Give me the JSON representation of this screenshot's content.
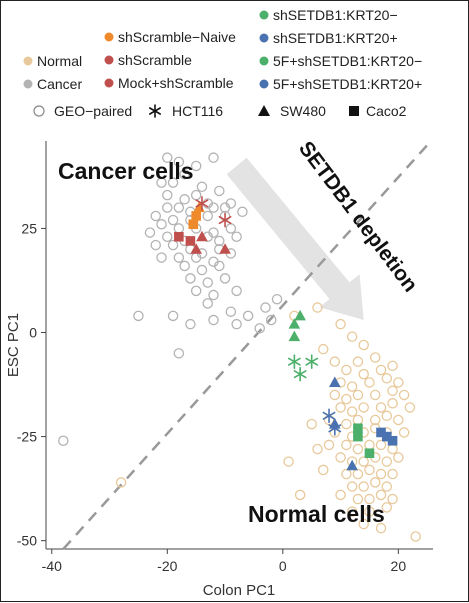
{
  "chart_data": {
    "type": "scatter",
    "xlabel": "Colon PC1",
    "ylabel": "ESC PC1",
    "xlim": [
      -41,
      26
    ],
    "ylim": [
      -52,
      46
    ],
    "xticks": [
      -40,
      -20,
      0,
      20
    ],
    "yticks": [
      25,
      0,
      -25,
      -50
    ],
    "grid": false,
    "legend_position": "top",
    "colors": {
      "normal": "#e8c99b",
      "cancer": "#b3b3b3",
      "scramble_naive": "#ee8a2b",
      "scramble": "#c0504d",
      "mock_scramble": "#c0504d",
      "setdb1_krt20_minus": "#4caf6a",
      "setdb1_krt20_plus": "#4a72b0",
      "f5_krt20_minus": "#4caf6a",
      "f5_krt20_plus": "#4a72b0",
      "shape_black": "#111111",
      "legend_open": "#888888",
      "diagonal": "#999999",
      "arrow": "#e3e3e3"
    },
    "legend": {
      "colors": [
        {
          "label": "Normal",
          "color": "#e8c99b"
        },
        {
          "label": "Cancer",
          "color": "#b3b3b3"
        },
        {
          "label": "shScramble−Naive",
          "color": "#ee8a2b"
        },
        {
          "label": "shScramble",
          "color": "#c0504d"
        },
        {
          "label": "Mock+shScramble",
          "color": "#c0504d"
        },
        {
          "label": "shSETDB1:KRT20−",
          "color": "#4caf6a"
        },
        {
          "label": "shSETDB1:KRT20+",
          "color": "#4a72b0"
        },
        {
          "label": "5F+shSETDB1:KRT20−",
          "color": "#4caf6a"
        },
        {
          "label": "5F+shSETDB1:KRT20+",
          "color": "#4a72b0"
        }
      ],
      "shapes": [
        {
          "label": "GEO−paired",
          "shape": "open-circle"
        },
        {
          "label": "HCT116",
          "shape": "asterisk"
        },
        {
          "label": "SW480",
          "shape": "triangle"
        },
        {
          "label": "Caco2",
          "shape": "square"
        }
      ]
    },
    "annotations": {
      "cancer_cells": "Cancer cells",
      "normal_cells": "Normal cells",
      "arrow_label": "SETDB1 depletion"
    },
    "diagonal": [
      [
        -38,
        -52
      ],
      [
        25,
        45
      ]
    ],
    "arrow": {
      "from": [
        -8,
        40
      ],
      "to": [
        14,
        3
      ]
    },
    "series": [
      {
        "name": "Cancer",
        "shape": "open-circle",
        "color": "#b3b3b3",
        "points": [
          [
            -20,
            42
          ],
          [
            -18,
            41
          ],
          [
            -15,
            40
          ],
          [
            -12,
            42
          ],
          [
            -17,
            38
          ],
          [
            -19,
            36
          ],
          [
            -21,
            36
          ],
          [
            -14,
            35
          ],
          [
            -11,
            34
          ],
          [
            -20,
            33
          ],
          [
            -17,
            32
          ],
          [
            -15,
            33
          ],
          [
            -13,
            31
          ],
          [
            -9,
            31
          ],
          [
            -20,
            30
          ],
          [
            -18,
            30
          ],
          [
            -16,
            29
          ],
          [
            -12,
            30
          ],
          [
            -10,
            30
          ],
          [
            -7,
            29
          ],
          [
            -22,
            28
          ],
          [
            -19,
            27
          ],
          [
            -16,
            27
          ],
          [
            -13,
            28
          ],
          [
            -10,
            28
          ],
          [
            -21,
            26
          ],
          [
            -18,
            25
          ],
          [
            -15,
            25
          ],
          [
            -12,
            24
          ],
          [
            -9,
            25
          ],
          [
            -23,
            24
          ],
          [
            -20,
            23
          ],
          [
            -17,
            22
          ],
          [
            -13,
            23
          ],
          [
            -11,
            22
          ],
          [
            -8,
            23
          ],
          [
            -22,
            21
          ],
          [
            -19,
            21
          ],
          [
            -16,
            20
          ],
          [
            -14,
            19
          ],
          [
            -11,
            20
          ],
          [
            -9,
            19
          ],
          [
            -21,
            18
          ],
          [
            -18,
            18
          ],
          [
            -15,
            18
          ],
          [
            -12,
            17
          ],
          [
            -17,
            16
          ],
          [
            -14,
            15
          ],
          [
            -11,
            16
          ],
          [
            -16,
            13
          ],
          [
            -13,
            12
          ],
          [
            -10,
            13
          ],
          [
            -15,
            10
          ],
          [
            -12,
            9
          ],
          [
            -8,
            10
          ],
          [
            -13,
            7
          ],
          [
            -9,
            5
          ],
          [
            -6,
            4
          ],
          [
            -3,
            6
          ],
          [
            -2,
            3
          ],
          [
            -1,
            8
          ],
          [
            -4,
            1
          ],
          [
            -8,
            2
          ],
          [
            -12,
            3
          ],
          [
            -16,
            2
          ],
          [
            -19,
            4
          ],
          [
            -25,
            4
          ],
          [
            -18,
            -5
          ],
          [
            -38,
            -26
          ]
        ]
      },
      {
        "name": "Normal",
        "shape": "open-circle",
        "color": "#e8c99b",
        "points": [
          [
            6,
            6
          ],
          [
            2,
            4
          ],
          [
            10,
            2
          ],
          [
            7,
            -4
          ],
          [
            12,
            -1
          ],
          [
            14,
            -3
          ],
          [
            9,
            -7
          ],
          [
            13,
            -7
          ],
          [
            16,
            -6
          ],
          [
            11,
            -9
          ],
          [
            14,
            -10
          ],
          [
            17,
            -9
          ],
          [
            19,
            -8
          ],
          [
            10,
            -12
          ],
          [
            12,
            -13
          ],
          [
            15,
            -12
          ],
          [
            18,
            -11
          ],
          [
            20,
            -12
          ],
          [
            9,
            -15
          ],
          [
            11,
            -16
          ],
          [
            13,
            -15
          ],
          [
            16,
            -15
          ],
          [
            19,
            -14
          ],
          [
            21,
            -15
          ],
          [
            10,
            -18
          ],
          [
            12,
            -19
          ],
          [
            14,
            -18
          ],
          [
            17,
            -18
          ],
          [
            19,
            -17
          ],
          [
            22,
            -18
          ],
          [
            8,
            -21
          ],
          [
            11,
            -22
          ],
          [
            13,
            -21
          ],
          [
            16,
            -21
          ],
          [
            18,
            -20
          ],
          [
            20,
            -21
          ],
          [
            9,
            -24
          ],
          [
            12,
            -25
          ],
          [
            14,
            -24
          ],
          [
            16,
            -23
          ],
          [
            18,
            -24
          ],
          [
            21,
            -24
          ],
          [
            8,
            -27
          ],
          [
            11,
            -27
          ],
          [
            13,
            -28
          ],
          [
            15,
            -27
          ],
          [
            17,
            -27
          ],
          [
            19,
            -28
          ],
          [
            10,
            -30
          ],
          [
            12,
            -31
          ],
          [
            14,
            -31
          ],
          [
            16,
            -30
          ],
          [
            18,
            -31
          ],
          [
            20,
            -30
          ],
          [
            7,
            -33
          ],
          [
            11,
            -34
          ],
          [
            13,
            -34
          ],
          [
            15,
            -33
          ],
          [
            17,
            -34
          ],
          [
            19,
            -34
          ],
          [
            12,
            -37
          ],
          [
            14,
            -37
          ],
          [
            16,
            -36
          ],
          [
            18,
            -37
          ],
          [
            10,
            -39
          ],
          [
            13,
            -40
          ],
          [
            15,
            -40
          ],
          [
            17,
            -39
          ],
          [
            19,
            -40
          ],
          [
            12,
            -43
          ],
          [
            15,
            -43
          ],
          [
            18,
            -42
          ],
          [
            14,
            -46
          ],
          [
            17,
            -47
          ],
          [
            1,
            -31
          ],
          [
            3,
            -39
          ],
          [
            23,
            -49
          ],
          [
            -28,
            -36
          ],
          [
            5,
            -22
          ],
          [
            6,
            -28
          ]
        ]
      },
      {
        "name": "shScramble−Naive",
        "shape": "square",
        "color": "#ee8a2b",
        "points": [
          [
            -15.5,
            26
          ],
          [
            -15,
            28
          ]
        ]
      },
      {
        "name": "shScramble−Naive",
        "shape": "triangle",
        "color": "#ee8a2b",
        "points": [
          [
            -14.5,
            30
          ]
        ]
      },
      {
        "name": "shScramble",
        "shape": "square",
        "color": "#c0504d",
        "points": [
          [
            -18,
            23
          ],
          [
            -16,
            22
          ]
        ]
      },
      {
        "name": "Mock+shScramble",
        "shape": "triangle",
        "color": "#c0504d",
        "points": [
          [
            -14,
            23
          ],
          [
            -15,
            20
          ],
          [
            -10,
            20
          ]
        ]
      },
      {
        "name": "shScramble",
        "shape": "asterisk",
        "color": "#c0504d",
        "points": [
          [
            -14,
            31
          ],
          [
            -10,
            27
          ]
        ]
      },
      {
        "name": "shSETDB1:KRT20−",
        "shape": "triangle",
        "color": "#4caf6a",
        "points": [
          [
            2,
            2
          ],
          [
            3,
            4
          ],
          [
            2,
            -1
          ]
        ]
      },
      {
        "name": "shSETDB1:KRT20−",
        "shape": "asterisk",
        "color": "#4caf6a",
        "points": [
          [
            2,
            -7
          ],
          [
            3,
            -10
          ],
          [
            5,
            -7
          ]
        ]
      },
      {
        "name": "5F+shSETDB1:KRT20−",
        "shape": "square",
        "color": "#4caf6a",
        "points": [
          [
            13,
            -23
          ],
          [
            13,
            -25
          ],
          [
            15,
            -29
          ]
        ]
      },
      {
        "name": "shSETDB1:KRT20+",
        "shape": "triangle",
        "color": "#4a72b0",
        "points": [
          [
            9,
            -12
          ],
          [
            9,
            -22
          ],
          [
            12,
            -32
          ]
        ]
      },
      {
        "name": "shSETDB1:KRT20+",
        "shape": "asterisk",
        "color": "#4a72b0",
        "points": [
          [
            8,
            -20
          ],
          [
            9,
            -23
          ]
        ]
      },
      {
        "name": "5F+shSETDB1:KRT20+",
        "shape": "square",
        "color": "#4a72b0",
        "points": [
          [
            17,
            -24
          ],
          [
            19,
            -26
          ],
          [
            18,
            -25
          ]
        ]
      }
    ]
  }
}
